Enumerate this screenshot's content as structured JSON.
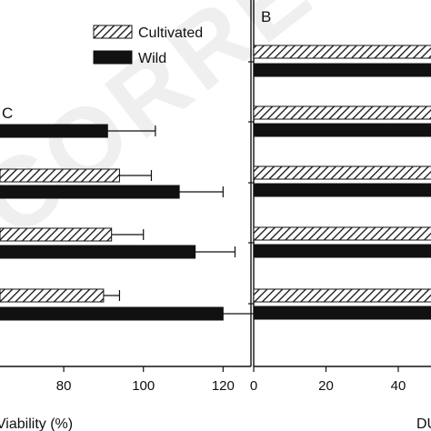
{
  "watermark": "CORRECTED",
  "chart_data": [
    {
      "panel": "C",
      "type": "bar",
      "orientation": "horizontal",
      "xlabel": "Viability (%)",
      "xticks": [
        80,
        100,
        120
      ],
      "xlim": [
        64,
        127
      ],
      "groups": 4,
      "series": [
        {
          "name": "Cultivated",
          "pattern": "hatched",
          "values": [
            null,
            94,
            92,
            90
          ],
          "errors": [
            null,
            8,
            8,
            4
          ]
        },
        {
          "name": "Wild",
          "pattern": "solid-black",
          "values": [
            91,
            109,
            113,
            120
          ],
          "errors": [
            12,
            11,
            10,
            8
          ]
        }
      ]
    },
    {
      "panel": "B",
      "type": "bar",
      "orientation": "horizontal",
      "xlabel": "DU",
      "xticks": [
        0,
        20,
        40
      ],
      "xlim": [
        0,
        47
      ],
      "groups": 5,
      "series": [
        {
          "name": "Cultivated",
          "pattern": "hatched",
          "values": [
            null,
            null,
            null,
            null,
            null
          ]
        },
        {
          "name": "Wild",
          "pattern": "solid-black",
          "values": [
            null,
            null,
            null,
            null,
            null
          ]
        }
      ]
    }
  ],
  "legend": {
    "items": [
      {
        "label": "Cultivated",
        "pattern": "hatched"
      },
      {
        "label": "Wild",
        "pattern": "solid-black"
      }
    ]
  }
}
